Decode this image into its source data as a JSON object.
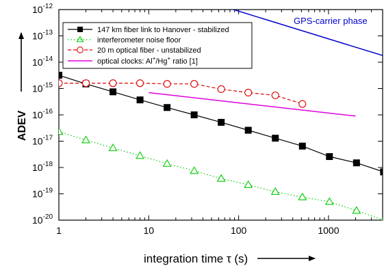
{
  "chart_data": {
    "type": "line",
    "xlabel": "integration time τ (s)",
    "ylabel": "ADEV",
    "xscale": "log",
    "yscale": "log",
    "xlim": [
      1,
      4000
    ],
    "ylim": [
      1e-20,
      1e-12
    ],
    "grid": false,
    "legend_position": "top-left",
    "x_tick_labels": [
      "1",
      "10",
      "100",
      "1000"
    ],
    "y_tick_labels": [
      {
        "base": "10",
        "exp": "-12"
      },
      {
        "base": "10",
        "exp": "-13"
      },
      {
        "base": "10",
        "exp": "-14"
      },
      {
        "base": "10",
        "exp": "-15"
      },
      {
        "base": "10",
        "exp": "-16"
      },
      {
        "base": "10",
        "exp": "-17"
      },
      {
        "base": "10",
        "exp": "-18"
      },
      {
        "base": "10",
        "exp": "-19"
      },
      {
        "base": "10",
        "exp": "-20"
      }
    ],
    "series": [
      {
        "name": "147 km fiber link to Hanover - stabilized",
        "color": "#000000",
        "marker": "filled-square",
        "line": "solid",
        "x": [
          1,
          2,
          4,
          8,
          16,
          32,
          64,
          128,
          256,
          512,
          1024,
          2048,
          4096
        ],
        "y": [
          3.2e-15,
          1.5e-15,
          7.5e-16,
          3.7e-16,
          1.9e-16,
          1e-16,
          5.2e-17,
          2.6e-17,
          1.3e-17,
          6.5e-18,
          2.6e-18,
          1.5e-18,
          6.8e-19
        ]
      },
      {
        "name": "interferometer noise floor",
        "color": "#00cc00",
        "marker": "open-triangle",
        "line": "dotted",
        "x": [
          1,
          2,
          4,
          8,
          16,
          32,
          64,
          128,
          256,
          512,
          1024,
          2048,
          4096
        ],
        "y": [
          2.3e-17,
          1.1e-17,
          5.5e-18,
          2.8e-18,
          1.4e-18,
          7.5e-19,
          3.8e-19,
          2.2e-19,
          1.2e-19,
          7.5e-20,
          5e-20,
          2.3e-20,
          1e-20
        ]
      },
      {
        "name": "20 m optical fiber - unstabilized",
        "color": "#dd0000",
        "marker": "open-circle",
        "line": "dashed",
        "x": [
          1,
          2,
          4,
          8,
          16,
          32,
          64,
          128,
          256,
          512
        ],
        "y": [
          1.6e-15,
          1.6e-15,
          1.6e-15,
          1.6e-15,
          1.5e-15,
          1.5e-15,
          9.5e-16,
          7e-16,
          5.5e-16,
          2.6e-16
        ]
      },
      {
        "name": "optical clocks: Al+/Hg+ ratio [1]",
        "color": "#dd00dd",
        "marker": "none",
        "line": "solid",
        "x": [
          10,
          2000
        ],
        "y": [
          7e-16,
          9e-17
        ]
      },
      {
        "name": "GPS-carrier phase",
        "color": "#0000cc",
        "marker": "none",
        "line": "solid",
        "x": [
          80,
          4000
        ],
        "y": [
          1.1e-12,
          1.8e-14
        ]
      }
    ],
    "legend_entries": [
      {
        "text": "147 km fiber link to Hanover - stabilized"
      },
      {
        "text": "interferometer noise floor"
      },
      {
        "text": "20 m optical fiber - unstabilized"
      },
      {
        "pre": "optical clocks: Al",
        "sup1": "+",
        "mid": "/Hg",
        "sup2": "+",
        "post": " ratio [1]"
      }
    ],
    "annotation": {
      "text": "GPS-carrier phase",
      "color": "#0000cc"
    }
  }
}
